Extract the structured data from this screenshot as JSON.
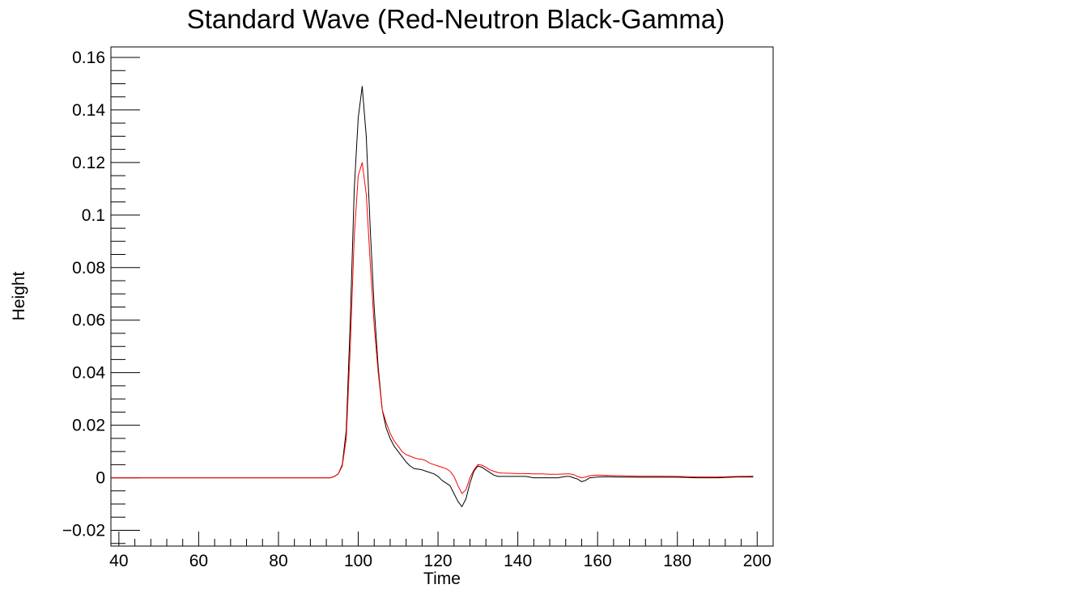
{
  "chart_data": {
    "type": "line",
    "title": "Standard Wave (Red-Neutron Black-Gamma)",
    "xlabel": "Time",
    "ylabel": "Height",
    "xlim": [
      38,
      204
    ],
    "ylim": [
      -0.026,
      0.164
    ],
    "x_ticks": [
      40,
      60,
      80,
      100,
      120,
      140,
      160,
      180,
      200
    ],
    "x_tick_labels": [
      "40",
      "60",
      "80",
      "100",
      "120",
      "140",
      "160",
      "180",
      "200"
    ],
    "y_ticks": [
      -0.02,
      0,
      0.02,
      0.04,
      0.06,
      0.08,
      0.1,
      0.12,
      0.14,
      0.16
    ],
    "y_tick_labels": [
      "−0.02",
      "0",
      "0.02",
      "0.04",
      "0.06",
      "0.08",
      "0.1",
      "0.12",
      "0.14",
      "0.16"
    ],
    "grid": false,
    "legend": "none",
    "series": [
      {
        "color": "#000000",
        "x": [
          38,
          45,
          50,
          60,
          70,
          80,
          88,
          92,
          93,
          94,
          95,
          96,
          97,
          98,
          99,
          100,
          101,
          102,
          103,
          104,
          105,
          106,
          107,
          108,
          109,
          110,
          111,
          112,
          113,
          114,
          115,
          116,
          117,
          118,
          119,
          120,
          121,
          122,
          123,
          124,
          125,
          126,
          127,
          128,
          129,
          130,
          131,
          132,
          133,
          134,
          135,
          136,
          138,
          140,
          142,
          144,
          146,
          148,
          150,
          152,
          153,
          154,
          155,
          156,
          157,
          158,
          160,
          162,
          165,
          170,
          175,
          180,
          185,
          190,
          195,
          199
        ],
        "y": [
          0.0,
          0.0,
          0.0,
          0.0,
          0.0,
          0.0,
          0.0,
          0.0,
          0.0,
          0.0005,
          0.0015,
          0.005,
          0.018,
          0.06,
          0.11,
          0.137,
          0.149,
          0.13,
          0.095,
          0.065,
          0.042,
          0.026,
          0.019,
          0.015,
          0.012,
          0.01,
          0.008,
          0.006,
          0.0045,
          0.0035,
          0.0033,
          0.003,
          0.0025,
          0.002,
          0.0015,
          0.0005,
          -0.001,
          -0.002,
          -0.003,
          -0.006,
          -0.009,
          -0.011,
          -0.008,
          -0.002,
          0.0025,
          0.0045,
          0.004,
          0.003,
          0.002,
          0.001,
          0.0005,
          0.0005,
          0.0005,
          0.0005,
          0.0005,
          0.0,
          0.0,
          0.0,
          0.0,
          0.0005,
          0.0005,
          0.0,
          -0.0005,
          -0.0015,
          -0.001,
          0.0,
          0.0003,
          0.0004,
          0.0003,
          0.0002,
          0.0002,
          0.0002,
          0.0,
          0.0,
          0.0003,
          0.0003
        ]
      },
      {
        "color": "#ff0000",
        "x": [
          38,
          45,
          50,
          60,
          70,
          80,
          88,
          92,
          93,
          94,
          95,
          96,
          97,
          98,
          99,
          100,
          101,
          102,
          103,
          104,
          105,
          106,
          107,
          108,
          109,
          110,
          111,
          112,
          113,
          114,
          115,
          116,
          117,
          118,
          119,
          120,
          121,
          122,
          123,
          124,
          125,
          126,
          127,
          128,
          129,
          130,
          131,
          132,
          133,
          134,
          135,
          136,
          138,
          140,
          142,
          144,
          146,
          148,
          150,
          152,
          153,
          154,
          155,
          156,
          157,
          158,
          160,
          162,
          165,
          170,
          175,
          180,
          185,
          190,
          195,
          199
        ],
        "y": [
          0.0,
          0.0,
          0.0,
          0.0,
          0.0,
          0.0,
          0.0,
          0.0,
          0.0,
          0.0005,
          0.0015,
          0.0045,
          0.015,
          0.05,
          0.092,
          0.115,
          0.12,
          0.108,
          0.082,
          0.058,
          0.04,
          0.026,
          0.021,
          0.017,
          0.014,
          0.012,
          0.01,
          0.0088,
          0.0082,
          0.0076,
          0.0072,
          0.007,
          0.0065,
          0.0055,
          0.005,
          0.0045,
          0.004,
          0.0035,
          0.0025,
          0.0005,
          -0.003,
          -0.006,
          -0.0045,
          0.0,
          0.003,
          0.005,
          0.0048,
          0.004,
          0.003,
          0.0025,
          0.002,
          0.0018,
          0.0017,
          0.0016,
          0.0016,
          0.0015,
          0.0015,
          0.0013,
          0.0013,
          0.0015,
          0.0015,
          0.0012,
          0.0005,
          0.0,
          0.0003,
          0.0008,
          0.001,
          0.0009,
          0.0008,
          0.0006,
          0.0006,
          0.0005,
          0.0003,
          0.0003,
          0.0005,
          0.0006
        ]
      }
    ]
  }
}
